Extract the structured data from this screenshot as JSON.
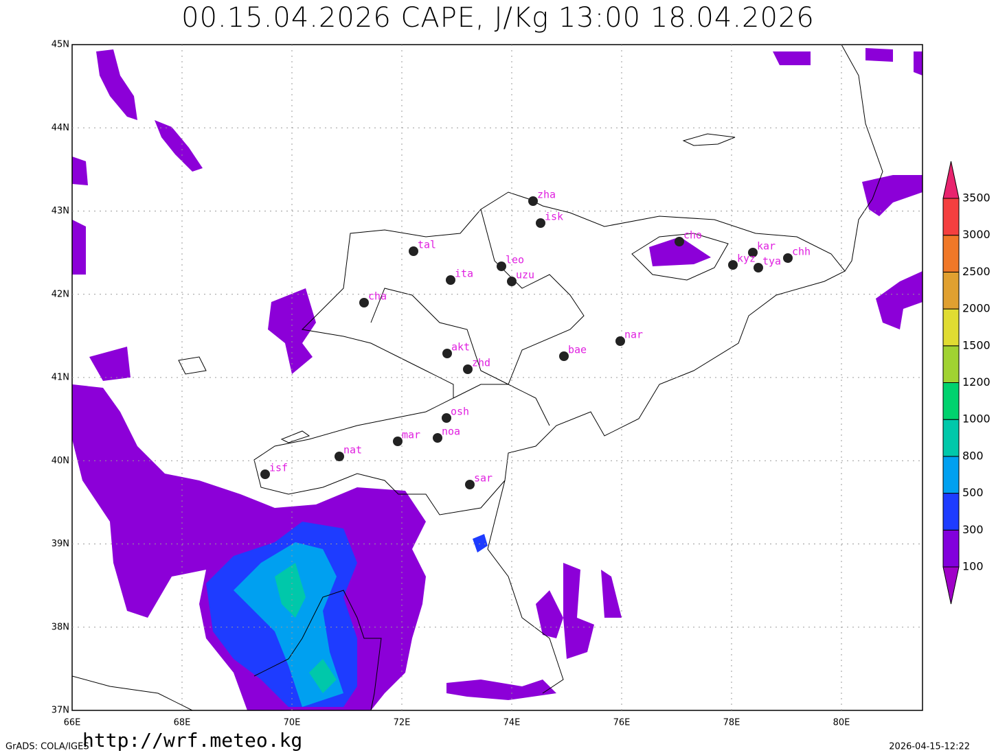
{
  "title": "00.15.04.2026 CAPE, J/Kg 13:00 18.04.2026",
  "lon_labels": [
    "66E",
    "68E",
    "70E",
    "72E",
    "74E",
    "76E",
    "78E",
    "80E"
  ],
  "lat_labels": [
    "45N",
    "44N",
    "43N",
    "42N",
    "41N",
    "40N",
    "39N",
    "38N",
    "37N"
  ],
  "stations": [
    "zha",
    "isk",
    "tal",
    "leo",
    "ita",
    "uzu",
    "cha",
    "cho",
    "kar",
    "kyz",
    "tya",
    "chh",
    "nar",
    "bae",
    "akt",
    "zhd",
    "osh",
    "noa",
    "mar",
    "nat",
    "isf",
    "sar"
  ],
  "colorbar": {
    "levels": [
      100,
      300,
      500,
      800,
      1000,
      1200,
      1500,
      2000,
      2500,
      3000,
      3500
    ],
    "colors": [
      "#a000c8",
      "#8200dc",
      "#1e3cff",
      "#00a0f0",
      "#00c8aa",
      "#00d26e",
      "#a0d232",
      "#e0dc32",
      "#e0a030",
      "#f07828",
      "#f43f3f",
      "#e8246e"
    ]
  },
  "footer": {
    "software": "GrADS: COLA/IGES",
    "url": "http://wrf.meteo.kg",
    "timestamp": "2026-04-15-12:22"
  }
}
